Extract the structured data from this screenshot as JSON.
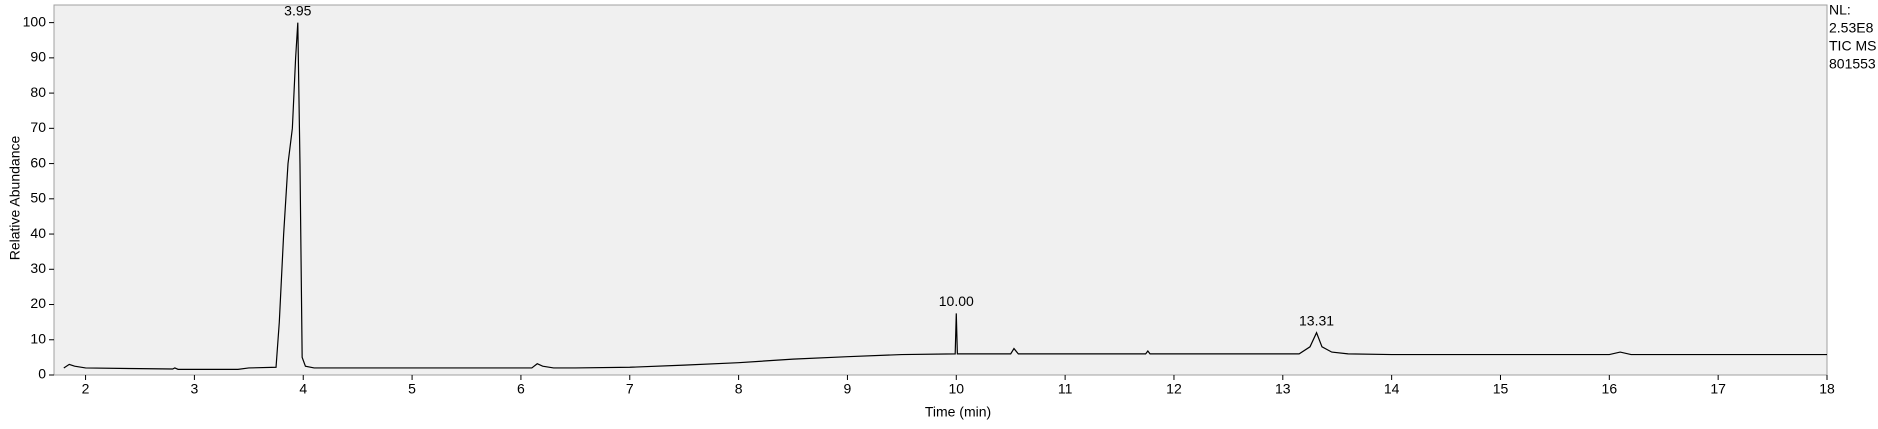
{
  "chart_data": {
    "type": "line",
    "xlabel": "Time (min)",
    "ylabel": "Relative Abundance",
    "side_text": [
      "NL:",
      "2.53E8",
      "TIC  MS",
      "801553"
    ],
    "xlim": [
      1.71,
      18
    ],
    "xticks": [
      2,
      3,
      4,
      5,
      6,
      7,
      8,
      9,
      10,
      11,
      12,
      13,
      14,
      15,
      16,
      17,
      18
    ],
    "ylim": [
      0,
      105
    ],
    "yticks": [
      0,
      10,
      20,
      30,
      40,
      50,
      60,
      70,
      80,
      90,
      100
    ],
    "series": [
      {
        "name": "TIC",
        "color": "#000000",
        "x": [
          1.8,
          1.85,
          1.9,
          2.0,
          2.5,
          2.8,
          2.82,
          2.85,
          3.0,
          3.4,
          3.5,
          3.75,
          3.78,
          3.82,
          3.86,
          3.9,
          3.93,
          3.95,
          3.97,
          3.99,
          4.02,
          4.1,
          5,
          6.0,
          6.1,
          6.15,
          6.2,
          6.3,
          6.5,
          7.0,
          7.5,
          8.0,
          8.5,
          9.0,
          9.5,
          9.99,
          10.0,
          10.01,
          10.5,
          10.53,
          10.57,
          11.0,
          11.74,
          11.76,
          11.78,
          12.5,
          13.15,
          13.25,
          13.31,
          13.36,
          13.45,
          13.6,
          14,
          15,
          16.0,
          16.1,
          16.2,
          17,
          18
        ],
        "values": [
          2,
          3,
          2.5,
          2,
          1.8,
          1.7,
          2,
          1.6,
          1.6,
          1.6,
          2,
          2.2,
          15,
          40,
          60,
          70,
          90,
          100,
          60,
          5,
          2.5,
          2,
          2,
          2,
          2,
          3.2,
          2.5,
          2,
          2,
          2.2,
          2.8,
          3.5,
          4.5,
          5.2,
          5.8,
          6,
          17.5,
          6,
          6,
          7.5,
          6,
          6,
          6,
          6.8,
          6,
          6,
          6,
          8,
          12,
          8,
          6.5,
          6,
          5.8,
          5.8,
          5.8,
          6.5,
          5.8,
          5.8,
          5.8
        ]
      }
    ],
    "annotations": [
      {
        "text": "3.95",
        "x": 3.95,
        "y": 100
      },
      {
        "text": "10.00",
        "x": 10.0,
        "y": 17.5
      },
      {
        "text": "13.31",
        "x": 13.31,
        "y": 12
      }
    ]
  }
}
